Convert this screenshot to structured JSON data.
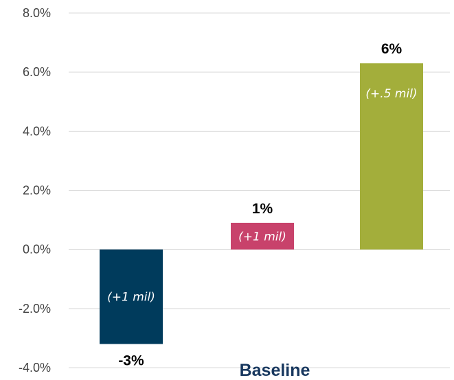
{
  "chart_data": {
    "type": "bar",
    "categories": [
      "Baseline"
    ],
    "series": [
      {
        "value": -3.2,
        "value_label": "-3%",
        "note": "(+1 mil)",
        "color": "#003b5c"
      },
      {
        "value": 0.9,
        "value_label": "1%",
        "note": "(+1 mil)",
        "color": "#c8426b"
      },
      {
        "value": 6.3,
        "value_label": "6%",
        "note": "(+.5 mil)",
        "color": "#a3ae3b"
      }
    ],
    "ylim": [
      -4,
      8
    ],
    "yticks": [
      -4,
      -2,
      0,
      2,
      4,
      6,
      8
    ],
    "ytick_labels": [
      "-4.0%",
      "-2.0%",
      "0.0%",
      "2.0%",
      "4.0%",
      "6.0%",
      "8.0%"
    ],
    "grid": true,
    "legend": "none"
  }
}
